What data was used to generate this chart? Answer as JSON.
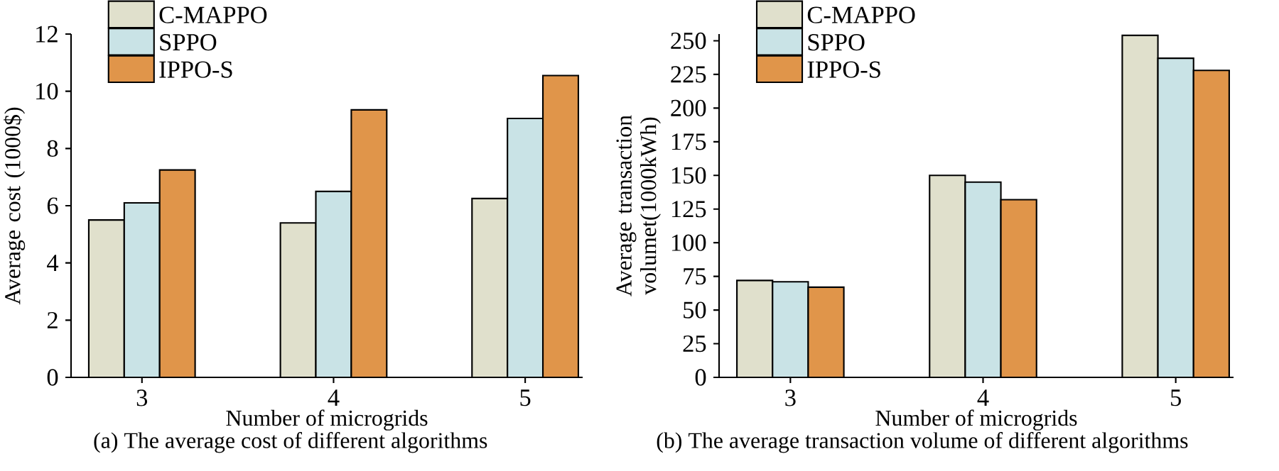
{
  "chart_data": [
    {
      "type": "bar",
      "xlabel": "Number of microgrids",
      "ylabel": "Average cost (1000$)",
      "categories": [
        "3",
        "4",
        "5"
      ],
      "ylim": [
        0,
        12
      ],
      "yticks": [
        0,
        2,
        4,
        6,
        8,
        10,
        12
      ],
      "legend": "top left",
      "series": [
        {
          "name": "C-MAPPO",
          "color": "#e0e0cc",
          "values": [
            5.5,
            5.4,
            6.25
          ]
        },
        {
          "name": "SPPO",
          "color": "#c9e3e6",
          "values": [
            6.1,
            6.5,
            9.05
          ]
        },
        {
          "name": "IPPO-S",
          "color": "#e0954a",
          "values": [
            7.25,
            9.35,
            10.55
          ]
        }
      ],
      "annotations": [
        "(a) The average cost of different algorithms"
      ]
    },
    {
      "type": "bar",
      "xlabel": "Number of microgrids",
      "ylabel": "Average transaction volumet(1000kWh)",
      "categories": [
        "3",
        "4",
        "5"
      ],
      "ylim": [
        0,
        255
      ],
      "yticks": [
        0,
        25,
        50,
        75,
        100,
        125,
        150,
        175,
        200,
        225,
        250
      ],
      "legend": "top left",
      "series": [
        {
          "name": "C-MAPPO",
          "color": "#e0e0cc",
          "values": [
            72,
            150,
            254
          ]
        },
        {
          "name": "SPPO",
          "color": "#c9e3e6",
          "values": [
            71,
            145,
            237
          ]
        },
        {
          "name": "IPPO-S",
          "color": "#e0954a",
          "values": [
            67,
            132,
            228
          ]
        }
      ],
      "annotations": [
        "(b) The average transaction volume of different algorithms"
      ]
    }
  ]
}
